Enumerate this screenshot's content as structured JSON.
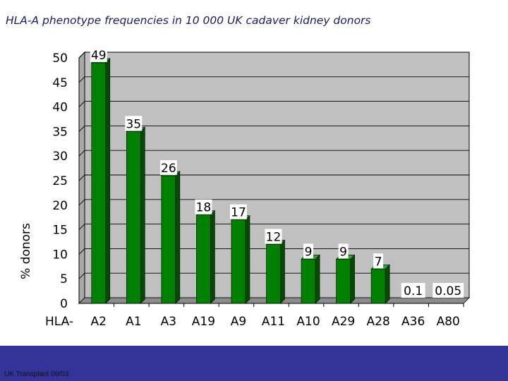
{
  "slide": {
    "title": "HLA-A phenotype frequencies in 10 000 UK cadaver kidney donors",
    "footer": "UK Transplant 09/03"
  },
  "colors": {
    "plot_background": "#c0c0c0",
    "bar_front": "#008000",
    "bar_side": "#004d00",
    "footer_band": "#333399"
  },
  "chart_data": {
    "type": "bar",
    "title": "",
    "xlabel": "",
    "xlabel_prefix": "HLA-",
    "ylabel": "% donors",
    "categories": [
      "A2",
      "A1",
      "A3",
      "A19",
      "A9",
      "A11",
      "A10",
      "A29",
      "A28",
      "A36",
      "A80"
    ],
    "values": [
      49,
      35,
      26,
      18,
      17,
      12,
      9,
      9,
      7,
      0.1,
      0.05
    ],
    "data_labels": [
      "49",
      "35",
      "26",
      "18",
      "17",
      "12",
      "9",
      "9",
      "7",
      "0.1",
      "0.05"
    ],
    "ylim": [
      0,
      50
    ],
    "yticks": [
      0,
      5,
      10,
      15,
      20,
      25,
      30,
      35,
      40,
      45,
      50
    ],
    "grid": true,
    "style": "3d-column"
  }
}
